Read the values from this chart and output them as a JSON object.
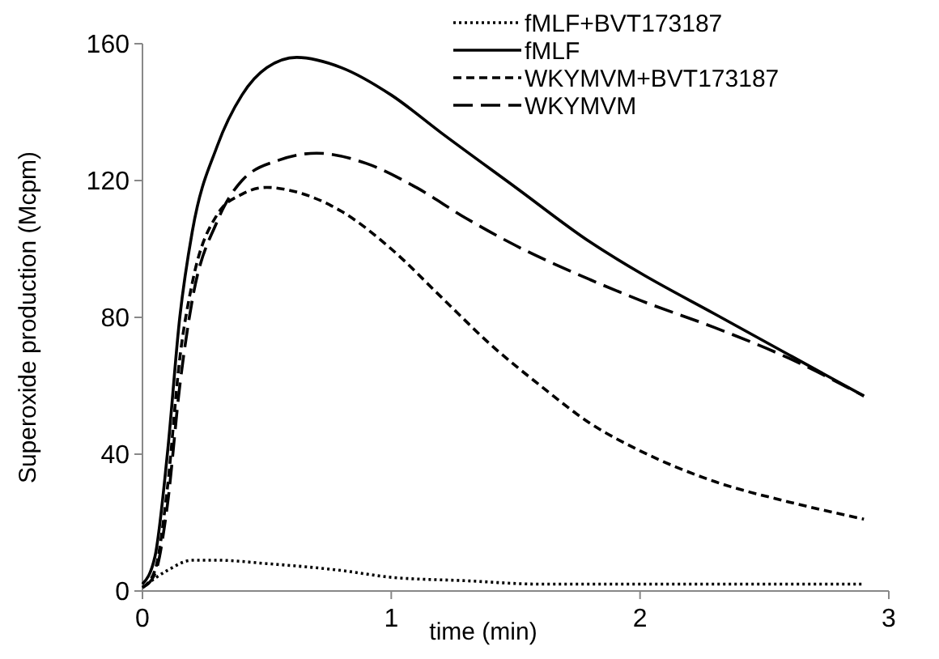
{
  "chart_data": {
    "type": "line",
    "xlabel": "time (min)",
    "ylabel": "Superoxide production (Mcpm)",
    "xlim": [
      0,
      3
    ],
    "xticks": [
      0,
      1,
      2,
      3
    ],
    "ylim": [
      0,
      160
    ],
    "yticks": [
      0,
      40,
      80,
      120,
      160
    ],
    "grid": false,
    "legend": "top right",
    "series": [
      {
        "name": "fMLF+BVT173187",
        "color": "#000000",
        "line_style": "dotted",
        "x": [
          0,
          0.1,
          0.2,
          0.3,
          0.5,
          0.8,
          1.0,
          1.3,
          1.6,
          2.0,
          2.9
        ],
        "values": [
          1,
          6,
          9,
          9,
          8,
          6,
          4,
          3,
          2,
          2,
          2
        ]
      },
      {
        "name": "fMLF",
        "color": "#000000",
        "line_style": "solid",
        "x": [
          0,
          0.05,
          0.1,
          0.15,
          0.2,
          0.3,
          0.4,
          0.5,
          0.62,
          0.8,
          1.0,
          1.2,
          1.5,
          1.8,
          2.0,
          2.3,
          2.6,
          2.9
        ],
        "values": [
          2,
          10,
          40,
          80,
          105,
          130,
          145,
          153,
          156,
          153,
          145,
          134,
          118,
          102,
          93,
          81,
          69,
          57
        ]
      },
      {
        "name": "WKYMVM+BVT173187",
        "color": "#000000",
        "line_style": "dashed",
        "x": [
          0,
          0.05,
          0.1,
          0.15,
          0.2,
          0.3,
          0.4,
          0.5,
          0.6,
          0.8,
          1.0,
          1.2,
          1.4,
          1.6,
          1.8,
          2.0,
          2.3,
          2.6,
          2.9
        ],
        "values": [
          1,
          6,
          30,
          68,
          90,
          110,
          116,
          118,
          117,
          111,
          100,
          86,
          72,
          60,
          49,
          41,
          32,
          26,
          21
        ]
      },
      {
        "name": "WKYMVM",
        "color": "#000000",
        "line_style": "dashed",
        "x": [
          0,
          0.05,
          0.1,
          0.15,
          0.2,
          0.3,
          0.4,
          0.55,
          0.7,
          0.9,
          1.1,
          1.3,
          1.5,
          1.8,
          2.0,
          2.3,
          2.6,
          2.9
        ],
        "values": [
          1,
          5,
          25,
          60,
          85,
          108,
          120,
          126,
          128,
          125,
          118,
          109,
          101,
          91,
          85,
          77,
          68,
          57
        ]
      }
    ]
  }
}
